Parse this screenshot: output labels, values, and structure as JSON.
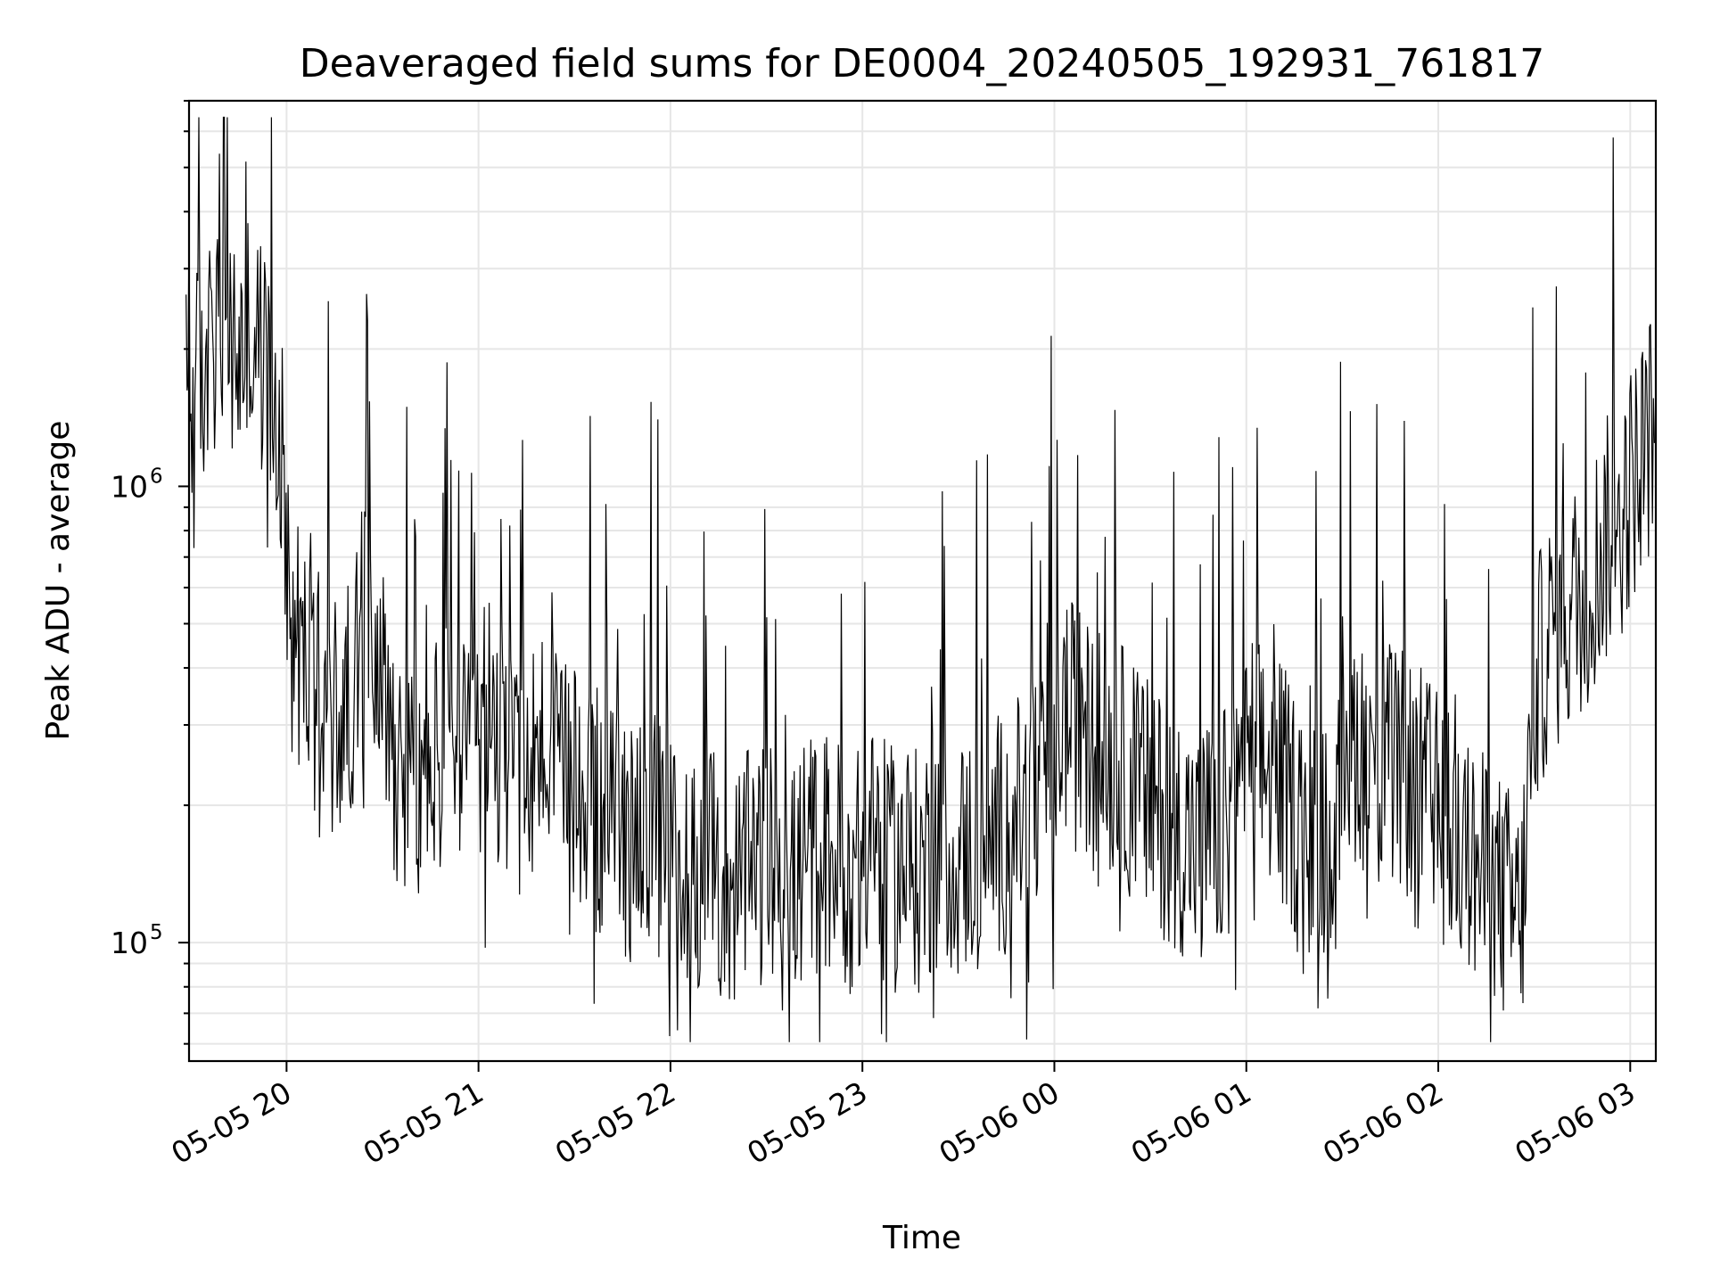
{
  "chart_data": {
    "type": "line",
    "title": "Deaveraged field sums for DE0004_20240505_192931_761817",
    "xlabel": "Time",
    "ylabel": "Peak ADU - average",
    "yscale": "log",
    "ylim": [
      55000,
      7000000
    ],
    "xlim": [
      "2024-05-05 19:29:31",
      "2024-05-06 03:08:00"
    ],
    "grid": true,
    "x_ticks": [
      {
        "value": "2024-05-05 20:00",
        "label": "05-05 20"
      },
      {
        "value": "2024-05-05 21:00",
        "label": "05-05 21"
      },
      {
        "value": "2024-05-05 22:00",
        "label": "05-05 22"
      },
      {
        "value": "2024-05-05 23:00",
        "label": "05-05 23"
      },
      {
        "value": "2024-05-06 00:00",
        "label": "05-06 00"
      },
      {
        "value": "2024-05-06 01:00",
        "label": "05-06 01"
      },
      {
        "value": "2024-05-06 02:00",
        "label": "05-06 02"
      },
      {
        "value": "2024-05-06 03:00",
        "label": "05-06 03"
      }
    ],
    "y_ticks": [
      {
        "value": 100000,
        "base": "10",
        "exp": "5"
      },
      {
        "value": 1000000,
        "base": "10",
        "exp": "6"
      }
    ],
    "series": [
      {
        "x": [
          "2024-05-05 19:30",
          "2024-05-05 19:34",
          "2024-05-05 19:38",
          "2024-05-05 19:42",
          "2024-05-05 19:46",
          "2024-05-05 19:50",
          "2024-05-05 19:54",
          "2024-05-05 19:58",
          "2024-05-05 20:02",
          "2024-05-05 20:06",
          "2024-05-05 20:10",
          "2024-05-05 20:14",
          "2024-05-05 20:18",
          "2024-05-05 20:22",
          "2024-05-05 20:26",
          "2024-05-05 20:30",
          "2024-05-05 20:34",
          "2024-05-05 20:38",
          "2024-05-05 20:42",
          "2024-05-05 20:46",
          "2024-05-05 20:50",
          "2024-05-05 20:54",
          "2024-05-05 20:58",
          "2024-05-05 21:02",
          "2024-05-05 21:06",
          "2024-05-05 21:10",
          "2024-05-05 21:14",
          "2024-05-05 21:18",
          "2024-05-05 21:22",
          "2024-05-05 21:26",
          "2024-05-05 21:30",
          "2024-05-05 21:34",
          "2024-05-05 21:38",
          "2024-05-05 21:42",
          "2024-05-05 21:46",
          "2024-05-05 21:50",
          "2024-05-05 21:54",
          "2024-05-05 21:58",
          "2024-05-05 22:02",
          "2024-05-05 22:06",
          "2024-05-05 22:10",
          "2024-05-05 22:14",
          "2024-05-05 22:18",
          "2024-05-05 22:22",
          "2024-05-05 22:26",
          "2024-05-05 22:30",
          "2024-05-05 22:34",
          "2024-05-05 22:38",
          "2024-05-05 22:42",
          "2024-05-05 22:46",
          "2024-05-05 22:50",
          "2024-05-05 22:54",
          "2024-05-05 22:58",
          "2024-05-05 23:02",
          "2024-05-05 23:06",
          "2024-05-05 23:10",
          "2024-05-05 23:14",
          "2024-05-05 23:18",
          "2024-05-05 23:22",
          "2024-05-05 23:26",
          "2024-05-05 23:30",
          "2024-05-05 23:34",
          "2024-05-05 23:38",
          "2024-05-05 23:42",
          "2024-05-05 23:46",
          "2024-05-05 23:50",
          "2024-05-05 23:54",
          "2024-05-05 23:58",
          "2024-05-06 00:02",
          "2024-05-06 00:06",
          "2024-05-06 00:10",
          "2024-05-06 00:14",
          "2024-05-06 00:18",
          "2024-05-06 00:22",
          "2024-05-06 00:26",
          "2024-05-06 00:30",
          "2024-05-06 00:34",
          "2024-05-06 00:38",
          "2024-05-06 00:42",
          "2024-05-06 00:46",
          "2024-05-06 00:50",
          "2024-05-06 00:54",
          "2024-05-06 00:58",
          "2024-05-06 01:02",
          "2024-05-06 01:06",
          "2024-05-06 01:10",
          "2024-05-06 01:14",
          "2024-05-06 01:18",
          "2024-05-06 01:22",
          "2024-05-06 01:26",
          "2024-05-06 01:30",
          "2024-05-06 01:34",
          "2024-05-06 01:38",
          "2024-05-06 01:42",
          "2024-05-06 01:46",
          "2024-05-06 01:50",
          "2024-05-06 01:54",
          "2024-05-06 01:58",
          "2024-05-06 02:02",
          "2024-05-06 02:06",
          "2024-05-06 02:10",
          "2024-05-06 02:14",
          "2024-05-06 02:18",
          "2024-05-06 02:22",
          "2024-05-06 02:26",
          "2024-05-06 02:30",
          "2024-05-06 02:34",
          "2024-05-06 02:38",
          "2024-05-06 02:42",
          "2024-05-06 02:46",
          "2024-05-06 02:50",
          "2024-05-06 02:54",
          "2024-05-06 02:58",
          "2024-05-06 03:02",
          "2024-05-06 03:06"
        ],
        "y": [
          1500000,
          1800000,
          2100000,
          2000000,
          1900000,
          2200000,
          1700000,
          1300000,
          500000,
          400000,
          350000,
          320000,
          300000,
          420000,
          600000,
          380000,
          260000,
          230000,
          210000,
          250000,
          300000,
          260000,
          220000,
          320000,
          280000,
          250000,
          220000,
          270000,
          260000,
          210000,
          250000,
          200000,
          190000,
          180000,
          170000,
          190000,
          180000,
          160000,
          150000,
          140000,
          150000,
          140000,
          130000,
          135000,
          145000,
          150000,
          140000,
          130000,
          150000,
          160000,
          155000,
          150000,
          140000,
          160000,
          150000,
          145000,
          150000,
          140000,
          160000,
          170000,
          150000,
          160000,
          155000,
          170000,
          180000,
          190000,
          200000,
          230000,
          320000,
          300000,
          280000,
          260000,
          250000,
          240000,
          220000,
          200000,
          190000,
          180000,
          170000,
          160000,
          170000,
          180000,
          210000,
          260000,
          240000,
          230000,
          200000,
          180000,
          170000,
          160000,
          200000,
          280000,
          260000,
          250000,
          240000,
          230000,
          220000,
          200000,
          180000,
          160000,
          150000,
          140000,
          130000,
          120000,
          110000,
          350000,
          450000,
          500000,
          550000,
          600000,
          700000,
          800000,
          900000,
          1100000,
          1300000
        ],
        "note_peaks": []
      }
    ]
  }
}
